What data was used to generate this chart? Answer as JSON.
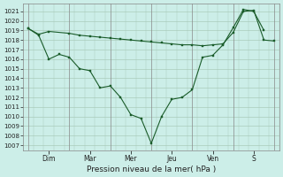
{
  "background_color": "#cceee8",
  "plot_bg_color": "#cceee8",
  "grid_color": "#aaccbb",
  "line_color": "#1a5c2a",
  "marker_color": "#1a5c2a",
  "xlabel": "Pression niveau de la mer( hPa )",
  "ylim": [
    1006.5,
    1021.8
  ],
  "yticks": [
    1007,
    1008,
    1009,
    1010,
    1011,
    1012,
    1013,
    1014,
    1015,
    1016,
    1017,
    1018,
    1019,
    1020,
    1021
  ],
  "day_labels": [
    "Dim",
    "Mar",
    "Mer",
    "Jeu",
    "Ven",
    "S"
  ],
  "day_positions": [
    2.5,
    6.5,
    10.5,
    14.5,
    18.5,
    22.5
  ],
  "day_line_positions": [
    0.5,
    4.5,
    8.5,
    12.5,
    16.5,
    20.5,
    24.5
  ],
  "xlim": [
    0,
    25
  ],
  "line1_x": [
    0.5,
    1.5,
    2.5,
    4.5,
    5.5,
    6.5,
    7.5,
    8.5,
    9.5,
    10.5,
    11.5,
    12.5,
    13.5,
    14.5,
    15.5,
    16.5,
    17.5,
    18.5,
    19.5,
    20.5,
    21.5,
    22.5,
    23.5,
    24.5
  ],
  "line1_y": [
    1019.2,
    1018.6,
    1018.9,
    1018.7,
    1018.5,
    1018.4,
    1018.3,
    1018.2,
    1018.1,
    1018.0,
    1017.9,
    1017.8,
    1017.7,
    1017.6,
    1017.5,
    1017.5,
    1017.4,
    1017.5,
    1017.6,
    1018.8,
    1021.0,
    1021.1,
    1018.0,
    1017.9
  ],
  "line2_x": [
    0.5,
    1.5,
    2.5,
    3.5,
    4.5,
    5.5,
    6.5,
    7.5,
    8.5,
    9.5,
    10.5,
    11.5,
    12.5,
    13.5,
    14.5,
    15.5,
    16.5,
    17.5,
    18.5,
    19.5,
    20.5,
    21.5,
    22.5,
    23.5
  ],
  "line2_y": [
    1019.2,
    1018.5,
    1016.0,
    1016.5,
    1016.2,
    1015.0,
    1014.8,
    1013.0,
    1013.2,
    1012.0,
    1010.2,
    1009.8,
    1007.2,
    1010.0,
    1011.8,
    1012.0,
    1012.8,
    1016.2,
    1016.4,
    1017.5,
    1019.3,
    1021.2,
    1021.0,
    1019.0
  ],
  "linewidth": 0.8,
  "markersize": 2.0,
  "xlabel_fontsize": 6.5,
  "ytick_fontsize": 5.0,
  "xtick_fontsize": 5.5
}
